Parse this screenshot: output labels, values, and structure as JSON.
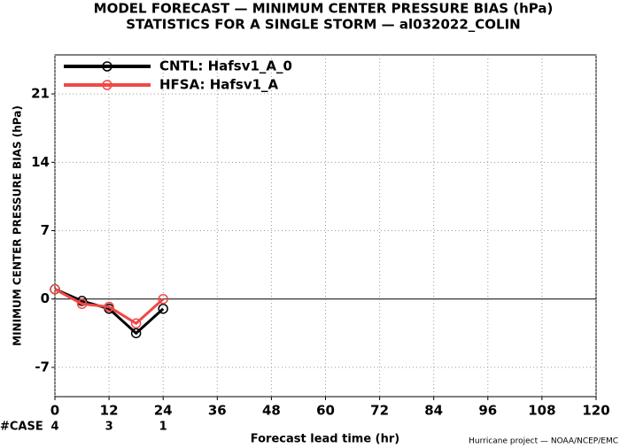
{
  "chart_data": {
    "type": "line",
    "title": "MODEL FORECAST — MINIMUM CENTER PRESSURE BIAS (hPa)",
    "subtitle": "STATISTICS FOR A SINGLE STORM — al032022_COLIN",
    "x_label": "Forecast lead time (hr)",
    "y_label": "MINIMUM CENTER PRESSURE BIAS (hPa)",
    "footer": "Hurricane project — NOAA/NCEP/EMC",
    "x": [
      0,
      6,
      12,
      18,
      24
    ],
    "series": [
      {
        "name": "CNTL: Hafsv1_A_0",
        "color": "#000000",
        "values": [
          1,
          -0.2,
          -1,
          -3.5,
          -1
        ]
      },
      {
        "name": "HFSA: Hafsv1_A",
        "color": "#f04848",
        "values": [
          1,
          -0.5,
          -0.8,
          -2.5,
          0
        ]
      }
    ],
    "case_counts": {
      "label": "#CASE",
      "color": "#20c0d0",
      "x": [
        0,
        12,
        24
      ],
      "values": [
        4,
        3,
        1
      ]
    },
    "xlim": [
      0,
      120
    ],
    "xticks": [
      0,
      12,
      24,
      36,
      48,
      60,
      72,
      84,
      96,
      108,
      120
    ],
    "ylim": [
      -10,
      25
    ],
    "yticks": [
      -7,
      0,
      7,
      14,
      21
    ],
    "grid": true,
    "legend": "upper left"
  }
}
